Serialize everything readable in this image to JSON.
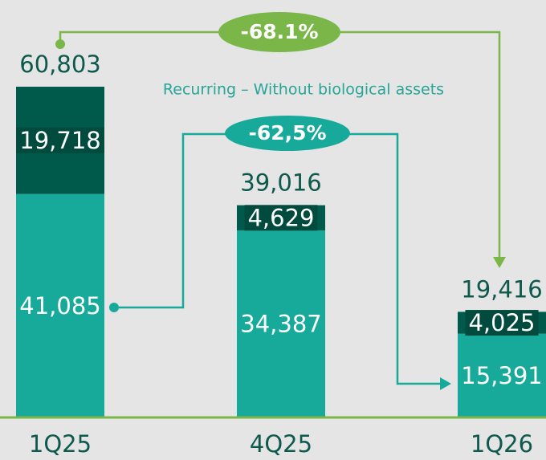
{
  "chart_data": {
    "type": "stacked_bar",
    "subtitle": "Recurring – Without biological assets",
    "categories": [
      "1Q25",
      "4Q25",
      "1Q26"
    ],
    "series": [
      {
        "color": "#17aa9b",
        "values": [
          41085,
          34387,
          15391
        ],
        "value_labels": [
          "41,085",
          "34,387",
          "15,391"
        ]
      },
      {
        "color": "#005a4b",
        "values": [
          19718,
          4629,
          4025
        ],
        "value_labels": [
          "19,718",
          "4,629",
          "4,025"
        ]
      }
    ],
    "totals": [
      60803,
      39016,
      19416
    ],
    "total_labels": [
      "60,803",
      "39,016",
      "19,416"
    ],
    "annotations": [
      {
        "text": "-68.1%",
        "color": "#7ab648"
      },
      {
        "text": "-62,5%",
        "color": "#17aa9b"
      }
    ]
  }
}
